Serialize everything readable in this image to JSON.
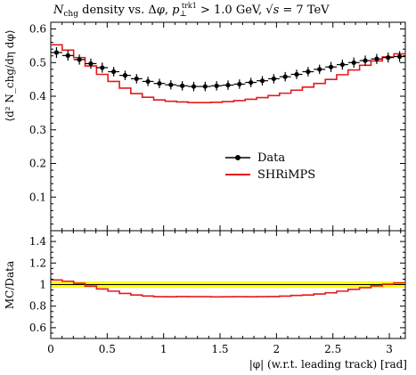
{
  "chart_data": {
    "type": "line",
    "title": "N_chg density vs. Δφ, p_⊥^trk1 > 1.0 GeV, √s = 7 TeV",
    "title_parts": {
      "n": "N",
      "n_sub": "chg",
      "mid": " density vs. Δ",
      "phi": "φ",
      "comma1": ", ",
      "p": "p",
      "p_sub": "⊥",
      "p_sup": "trk1",
      "cut": " > 1.0 GeV, ",
      "sqrt_s": "√s",
      "energy": " = 7 TeV"
    },
    "xlabel": "|φ| (w.r.t. leading track) [rad]",
    "ylabel_main": "⟨d² N_chg/dη dφ⟩",
    "ylabel_ratio": "MC/Data",
    "xlim": [
      0,
      3.1416
    ],
    "ylim_main": [
      0,
      0.62
    ],
    "ylim_ratio": [
      0.5,
      1.5
    ],
    "x_ticks": [
      "0",
      "0.5",
      "1",
      "1.5",
      "2",
      "2.5",
      "3"
    ],
    "y_ticks_main": [
      "0.1",
      "0.2",
      "0.3",
      "0.4",
      "0.5",
      "0.6"
    ],
    "y_ticks_ratio": [
      "0.6",
      "0.8",
      "1",
      "1.2",
      "1.4"
    ],
    "legend": {
      "position": "right",
      "data": "Data",
      "mc": "SHRiMPS"
    },
    "colors": {
      "mc": "#e41a1c",
      "data": "#000000",
      "band": "#ffff00"
    },
    "bins": {
      "n": 31,
      "start": 0,
      "end": 3.1416
    },
    "series": [
      {
        "name": "Data",
        "values": [
          0.53,
          0.521,
          0.509,
          0.497,
          0.485,
          0.473,
          0.462,
          0.452,
          0.444,
          0.438,
          0.434,
          0.431,
          0.429,
          0.429,
          0.431,
          0.433,
          0.436,
          0.441,
          0.446,
          0.452,
          0.458,
          0.465,
          0.473,
          0.48,
          0.487,
          0.494,
          0.5,
          0.506,
          0.511,
          0.515,
          0.518
        ],
        "errors": [
          0.016,
          0.015,
          0.015,
          0.015,
          0.015,
          0.014,
          0.014,
          0.014,
          0.014,
          0.014,
          0.014,
          0.014,
          0.014,
          0.014,
          0.014,
          0.014,
          0.014,
          0.014,
          0.014,
          0.014,
          0.014,
          0.014,
          0.014,
          0.014,
          0.015,
          0.015,
          0.015,
          0.015,
          0.015,
          0.015,
          0.016
        ]
      },
      {
        "name": "SHRiMPS",
        "values": [
          0.553,
          0.537,
          0.515,
          0.49,
          0.465,
          0.444,
          0.424,
          0.408,
          0.397,
          0.389,
          0.385,
          0.383,
          0.381,
          0.381,
          0.382,
          0.384,
          0.387,
          0.391,
          0.396,
          0.402,
          0.409,
          0.418,
          0.427,
          0.438,
          0.45,
          0.464,
          0.478,
          0.492,
          0.505,
          0.517,
          0.526
        ],
        "ratio": [
          1.043,
          1.031,
          1.012,
          0.986,
          0.959,
          0.939,
          0.918,
          0.903,
          0.894,
          0.888,
          0.887,
          0.889,
          0.888,
          0.888,
          0.886,
          0.887,
          0.888,
          0.887,
          0.888,
          0.889,
          0.893,
          0.899,
          0.903,
          0.913,
          0.924,
          0.939,
          0.956,
          0.972,
          0.988,
          1.004,
          1.015
        ]
      }
    ],
    "data_band_ratio": {
      "lower": 0.97,
      "upper": 1.03
    }
  }
}
